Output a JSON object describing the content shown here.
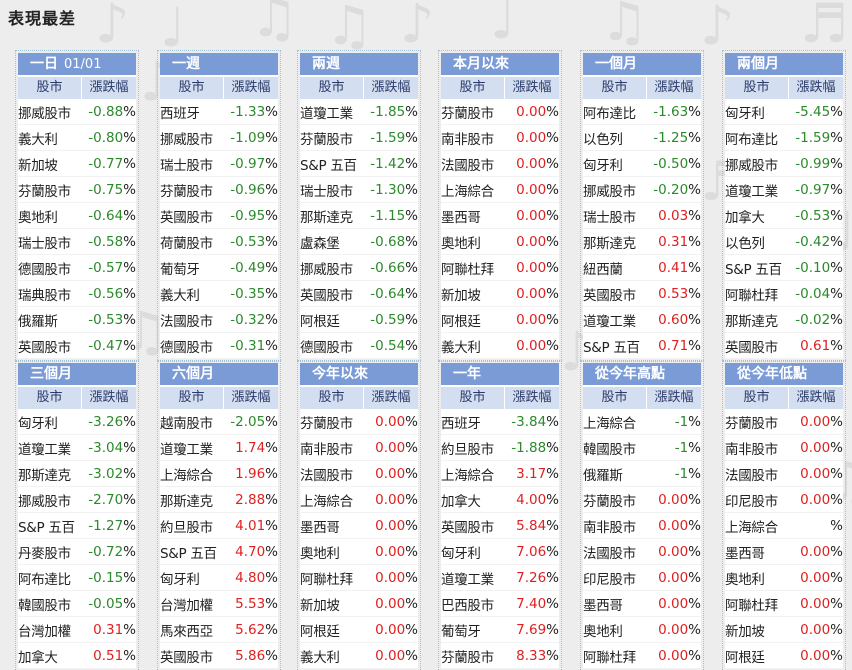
{
  "page": {
    "title": "表現最差"
  },
  "colors": {
    "header_bg": "#7b9bd6",
    "subheader_bg": "#d3def0",
    "negative": "#2b8a2b",
    "positive": "#e02020"
  },
  "panels": [
    {
      "title": "一日",
      "subtitle": "01/01",
      "col1": "股市",
      "col2": "漲跌幅",
      "rows": [
        {
          "name": "挪威股市",
          "num": "-0.88",
          "pct": "%"
        },
        {
          "name": "義大利",
          "num": "-0.80",
          "pct": "%"
        },
        {
          "name": "新加坡",
          "num": "-0.77",
          "pct": "%"
        },
        {
          "name": "芬蘭股市",
          "num": "-0.75",
          "pct": "%"
        },
        {
          "name": "奧地利",
          "num": "-0.64",
          "pct": "%"
        },
        {
          "name": "瑞士股市",
          "num": "-0.58",
          "pct": "%"
        },
        {
          "name": "德國股市",
          "num": "-0.57",
          "pct": "%"
        },
        {
          "name": "瑞典股市",
          "num": "-0.56",
          "pct": "%"
        },
        {
          "name": "俄羅斯",
          "num": "-0.53",
          "pct": "%"
        },
        {
          "name": "英國股市",
          "num": "-0.47",
          "pct": "%"
        }
      ]
    },
    {
      "title": "一週",
      "subtitle": "",
      "col1": "股市",
      "col2": "漲跌幅",
      "rows": [
        {
          "name": "西班牙",
          "num": "-1.33",
          "pct": "%"
        },
        {
          "name": "挪威股市",
          "num": "-1.09",
          "pct": "%"
        },
        {
          "name": "瑞士股市",
          "num": "-0.97",
          "pct": "%"
        },
        {
          "name": "芬蘭股市",
          "num": "-0.96",
          "pct": "%"
        },
        {
          "name": "英國股市",
          "num": "-0.95",
          "pct": "%"
        },
        {
          "name": "荷蘭股市",
          "num": "-0.53",
          "pct": "%"
        },
        {
          "name": "葡萄牙",
          "num": "-0.49",
          "pct": "%"
        },
        {
          "name": "義大利",
          "num": "-0.35",
          "pct": "%"
        },
        {
          "name": "法國股市",
          "num": "-0.32",
          "pct": "%"
        },
        {
          "name": "德國股市",
          "num": "-0.31",
          "pct": "%"
        }
      ]
    },
    {
      "title": "兩週",
      "subtitle": "",
      "col1": "股市",
      "col2": "漲跌幅",
      "rows": [
        {
          "name": "道瓊工業",
          "num": "-1.85",
          "pct": "%"
        },
        {
          "name": "芬蘭股市",
          "num": "-1.59",
          "pct": "%"
        },
        {
          "name": "S&P 五百",
          "num": "-1.42",
          "pct": "%"
        },
        {
          "name": "瑞士股市",
          "num": "-1.30",
          "pct": "%"
        },
        {
          "name": "那斯達克",
          "num": "-1.15",
          "pct": "%"
        },
        {
          "name": "盧森堡",
          "num": "-0.68",
          "pct": "%"
        },
        {
          "name": "挪威股市",
          "num": "-0.66",
          "pct": "%"
        },
        {
          "name": "英國股市",
          "num": "-0.64",
          "pct": "%"
        },
        {
          "name": "阿根廷",
          "num": "-0.59",
          "pct": "%"
        },
        {
          "name": "德國股市",
          "num": "-0.54",
          "pct": "%"
        }
      ]
    },
    {
      "title": "本月以來",
      "subtitle": "",
      "col1": "股市",
      "col2": "漲跌幅",
      "rows": [
        {
          "name": "芬蘭股市",
          "num": "0.00",
          "pct": "%"
        },
        {
          "name": "南非股市",
          "num": "0.00",
          "pct": "%"
        },
        {
          "name": "法國股市",
          "num": "0.00",
          "pct": "%"
        },
        {
          "name": "上海綜合",
          "num": "0.00",
          "pct": "%"
        },
        {
          "name": "墨西哥",
          "num": "0.00",
          "pct": "%"
        },
        {
          "name": "奧地利",
          "num": "0.00",
          "pct": "%"
        },
        {
          "name": "阿聯杜拜",
          "num": "0.00",
          "pct": "%"
        },
        {
          "name": "新加坡",
          "num": "0.00",
          "pct": "%"
        },
        {
          "name": "阿根廷",
          "num": "0.00",
          "pct": "%"
        },
        {
          "name": "義大利",
          "num": "0.00",
          "pct": "%"
        }
      ]
    },
    {
      "title": "一個月",
      "subtitle": "",
      "col1": "股市",
      "col2": "漲跌幅",
      "rows": [
        {
          "name": "阿布達比",
          "num": "-1.63",
          "pct": "%"
        },
        {
          "name": "以色列",
          "num": "-1.25",
          "pct": "%"
        },
        {
          "name": "匈牙利",
          "num": "-0.50",
          "pct": "%"
        },
        {
          "name": "挪威股市",
          "num": "-0.20",
          "pct": "%"
        },
        {
          "name": "瑞士股市",
          "num": "0.03",
          "pct": "%"
        },
        {
          "name": "那斯達克",
          "num": "0.31",
          "pct": "%"
        },
        {
          "name": "紐西蘭",
          "num": "0.41",
          "pct": "%"
        },
        {
          "name": "英國股市",
          "num": "0.53",
          "pct": "%"
        },
        {
          "name": "道瓊工業",
          "num": "0.60",
          "pct": "%"
        },
        {
          "name": "S&P 五百",
          "num": "0.71",
          "pct": "%"
        }
      ]
    },
    {
      "title": "兩個月",
      "subtitle": "",
      "col1": "股市",
      "col2": "漲跌幅",
      "rows": [
        {
          "name": "匈牙利",
          "num": "-5.45",
          "pct": "%"
        },
        {
          "name": "阿布達比",
          "num": "-1.59",
          "pct": "%"
        },
        {
          "name": "挪威股市",
          "num": "-0.99",
          "pct": "%"
        },
        {
          "name": "道瓊工業",
          "num": "-0.97",
          "pct": "%"
        },
        {
          "name": "加拿大",
          "num": "-0.53",
          "pct": "%"
        },
        {
          "name": "以色列",
          "num": "-0.42",
          "pct": "%"
        },
        {
          "name": "S&P 五百",
          "num": "-0.10",
          "pct": "%"
        },
        {
          "name": "阿聯杜拜",
          "num": "-0.04",
          "pct": "%"
        },
        {
          "name": "那斯達克",
          "num": "-0.02",
          "pct": "%"
        },
        {
          "name": "英國股市",
          "num": "0.61",
          "pct": "%"
        }
      ]
    },
    {
      "title": "三個月",
      "subtitle": "",
      "col1": "股市",
      "col2": "漲跌幅",
      "rows": [
        {
          "name": "匈牙利",
          "num": "-3.26",
          "pct": "%"
        },
        {
          "name": "道瓊工業",
          "num": "-3.04",
          "pct": "%"
        },
        {
          "name": "那斯達克",
          "num": "-3.02",
          "pct": "%"
        },
        {
          "name": "挪威股市",
          "num": "-2.70",
          "pct": "%"
        },
        {
          "name": "S&P 五百",
          "num": "-1.27",
          "pct": "%"
        },
        {
          "name": "丹麥股市",
          "num": "-0.72",
          "pct": "%"
        },
        {
          "name": "阿布達比",
          "num": "-0.15",
          "pct": "%"
        },
        {
          "name": "韓國股市",
          "num": "-0.05",
          "pct": "%"
        },
        {
          "name": "台灣加權",
          "num": "0.31",
          "pct": "%"
        },
        {
          "name": "加拿大",
          "num": "0.51",
          "pct": "%"
        }
      ]
    },
    {
      "title": "六個月",
      "subtitle": "",
      "col1": "股市",
      "col2": "漲跌幅",
      "rows": [
        {
          "name": "越南股市",
          "num": "-2.05",
          "pct": "%"
        },
        {
          "name": "道瓊工業",
          "num": "1.74",
          "pct": "%"
        },
        {
          "name": "上海綜合",
          "num": "1.96",
          "pct": "%"
        },
        {
          "name": "那斯達克",
          "num": "2.88",
          "pct": "%"
        },
        {
          "name": "約旦股市",
          "num": "4.01",
          "pct": "%"
        },
        {
          "name": "S&P 五百",
          "num": "4.70",
          "pct": "%"
        },
        {
          "name": "匈牙利",
          "num": "4.80",
          "pct": "%"
        },
        {
          "name": "台灣加權",
          "num": "5.53",
          "pct": "%"
        },
        {
          "name": "馬來西亞",
          "num": "5.62",
          "pct": "%"
        },
        {
          "name": "英國股市",
          "num": "5.86",
          "pct": "%"
        }
      ]
    },
    {
      "title": "今年以來",
      "subtitle": "",
      "col1": "股市",
      "col2": "漲跌幅",
      "rows": [
        {
          "name": "芬蘭股市",
          "num": "0.00",
          "pct": "%"
        },
        {
          "name": "南非股市",
          "num": "0.00",
          "pct": "%"
        },
        {
          "name": "法國股市",
          "num": "0.00",
          "pct": "%"
        },
        {
          "name": "上海綜合",
          "num": "0.00",
          "pct": "%"
        },
        {
          "name": "墨西哥",
          "num": "0.00",
          "pct": "%"
        },
        {
          "name": "奧地利",
          "num": "0.00",
          "pct": "%"
        },
        {
          "name": "阿聯杜拜",
          "num": "0.00",
          "pct": "%"
        },
        {
          "name": "新加坡",
          "num": "0.00",
          "pct": "%"
        },
        {
          "name": "阿根廷",
          "num": "0.00",
          "pct": "%"
        },
        {
          "name": "義大利",
          "num": "0.00",
          "pct": "%"
        }
      ]
    },
    {
      "title": "一年",
      "subtitle": "",
      "col1": "股市",
      "col2": "漲跌幅",
      "rows": [
        {
          "name": "西班牙",
          "num": "-3.84",
          "pct": "%"
        },
        {
          "name": "約旦股市",
          "num": "-1.88",
          "pct": "%"
        },
        {
          "name": "上海綜合",
          "num": "3.17",
          "pct": "%"
        },
        {
          "name": "加拿大",
          "num": "4.00",
          "pct": "%"
        },
        {
          "name": "英國股市",
          "num": "5.84",
          "pct": "%"
        },
        {
          "name": "匈牙利",
          "num": "7.06",
          "pct": "%"
        },
        {
          "name": "道瓊工業",
          "num": "7.26",
          "pct": "%"
        },
        {
          "name": "巴西股市",
          "num": "7.40",
          "pct": "%"
        },
        {
          "name": "葡萄牙",
          "num": "7.69",
          "pct": "%"
        },
        {
          "name": "芬蘭股市",
          "num": "8.33",
          "pct": "%"
        }
      ]
    },
    {
      "title": "從今年高點",
      "subtitle": "",
      "col1": "股市",
      "col2": "漲跌幅",
      "rows": [
        {
          "name": "上海綜合",
          "num": "-1",
          "pct": "%"
        },
        {
          "name": "韓國股市",
          "num": "-1",
          "pct": "%"
        },
        {
          "name": "俄羅斯",
          "num": "-1",
          "pct": "%"
        },
        {
          "name": "芬蘭股市",
          "num": "0.00",
          "pct": "%"
        },
        {
          "name": "南非股市",
          "num": "0.00",
          "pct": "%"
        },
        {
          "name": "法國股市",
          "num": "0.00",
          "pct": "%"
        },
        {
          "name": "印尼股市",
          "num": "0.00",
          "pct": "%"
        },
        {
          "name": "墨西哥",
          "num": "0.00",
          "pct": "%"
        },
        {
          "name": "奧地利",
          "num": "0.00",
          "pct": "%"
        },
        {
          "name": "阿聯杜拜",
          "num": "0.00",
          "pct": "%"
        }
      ]
    },
    {
      "title": "從今年低點",
      "subtitle": "",
      "col1": "股市",
      "col2": "漲跌幅",
      "rows": [
        {
          "name": "芬蘭股市",
          "num": "0.00",
          "pct": "%"
        },
        {
          "name": "南非股市",
          "num": "0.00",
          "pct": "%"
        },
        {
          "name": "法國股市",
          "num": "0.00",
          "pct": "%"
        },
        {
          "name": "印尼股市",
          "num": "0.00",
          "pct": "%"
        },
        {
          "name": "上海綜合",
          "num": "",
          "pct": "%"
        },
        {
          "name": "墨西哥",
          "num": "0.00",
          "pct": "%"
        },
        {
          "name": "奧地利",
          "num": "0.00",
          "pct": "%"
        },
        {
          "name": "阿聯杜拜",
          "num": "0.00",
          "pct": "%"
        },
        {
          "name": "新加坡",
          "num": "0.00",
          "pct": "%"
        },
        {
          "name": "阿根廷",
          "num": "0.00",
          "pct": "%"
        }
      ]
    }
  ]
}
